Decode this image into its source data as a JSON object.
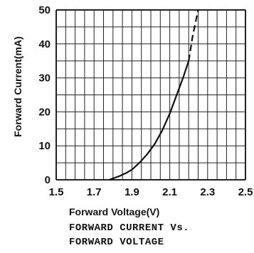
{
  "chart_data": {
    "type": "line",
    "title": "FORWARD CURRENT Vs. FORWARD VOLTAGE",
    "title_lines": [
      "FORWARD CURRENT Vs.",
      "FORWARD VOLTAGE"
    ],
    "xlabel": "Forward Voltage(V)",
    "ylabel": "Forward Current(mA)",
    "xlim": [
      1.5,
      2.5
    ],
    "ylim": [
      0,
      50
    ],
    "x_ticks": [
      "1.5",
      "1.7",
      "1.9",
      "2.1",
      "2.3",
      "2.5"
    ],
    "y_ticks": [
      "0",
      "10",
      "20",
      "30",
      "40",
      "50"
    ],
    "grid": true,
    "series": [
      {
        "x": [
          1.78,
          1.83,
          1.87,
          1.9,
          1.94,
          1.98,
          2.02,
          2.06,
          2.1,
          2.13,
          2.17,
          2.2
        ],
        "y": [
          0,
          1,
          2,
          3,
          5,
          7.5,
          10.5,
          14.5,
          19.5,
          24,
          30,
          35
        ],
        "style": "solid"
      },
      {
        "x": [
          2.2,
          2.22,
          2.25
        ],
        "y": [
          35,
          42,
          50
        ],
        "style": "dashed"
      }
    ]
  },
  "colors": {
    "line": "#111111",
    "grid": "#222222",
    "background": "#ffffff"
  }
}
